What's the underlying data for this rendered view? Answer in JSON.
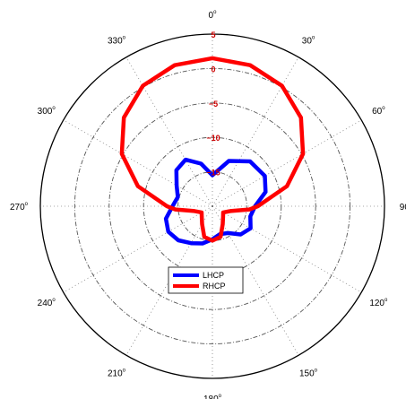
{
  "chart_data": {
    "type": "polar-line",
    "title": "",
    "angle_labels": [
      "0",
      "30",
      "60",
      "90",
      "120",
      "150",
      "180",
      "210",
      "240",
      "270",
      "300",
      "330"
    ],
    "angle_unit_mark": "o",
    "angle_zero": "top",
    "angle_direction": "clockwise",
    "rlim": [
      -20,
      5
    ],
    "ring_values": [
      -15,
      -10,
      -5,
      0
    ],
    "ring_labels": [
      "−15",
      "−10",
      "−5",
      "0",
      "5"
    ],
    "colors": {
      "ring_label": "#cc0000",
      "frame": "#000000",
      "grid": "#555555"
    },
    "legend": {
      "position": "lower-center",
      "entries": [
        "LHCP",
        "RHCP"
      ]
    },
    "series": [
      {
        "name": "LHCP",
        "color": "#0000ff",
        "theta_deg": [
          0,
          20,
          40,
          60,
          75,
          90,
          105,
          120,
          135,
          150,
          165,
          180,
          195,
          210,
          225,
          240,
          255,
          270,
          285,
          300,
          315,
          330,
          345,
          360
        ],
        "r": [
          -15.5,
          -13.0,
          -11.5,
          -11.2,
          -12.0,
          -13.8,
          -14.3,
          -13.6,
          -14.2,
          -15.5,
          -15.8,
          -15.2,
          -14.4,
          -13.8,
          -13.0,
          -12.6,
          -13.0,
          -14.2,
          -14.8,
          -14.0,
          -12.6,
          -12.2,
          -13.6,
          -15.5
        ]
      },
      {
        "name": "RHCP",
        "color": "#ff0000",
        "theta_deg": [
          0,
          15,
          30,
          45,
          60,
          75,
          90,
          95,
          105,
          120,
          135,
          150,
          165,
          180,
          195,
          210,
          225,
          240,
          255,
          265,
          270,
          285,
          300,
          315,
          330,
          345,
          360
        ],
        "r": [
          1.5,
          1.2,
          0.2,
          -1.8,
          -4.8,
          -8.8,
          -13.4,
          -14.6,
          -17.3,
          -18.2,
          -17.8,
          -17.0,
          -15.4,
          -15.0,
          -15.4,
          -17.0,
          -17.8,
          -18.2,
          -17.3,
          -14.6,
          -13.4,
          -8.8,
          -4.8,
          -1.8,
          0.2,
          1.2,
          1.5
        ]
      }
    ]
  }
}
